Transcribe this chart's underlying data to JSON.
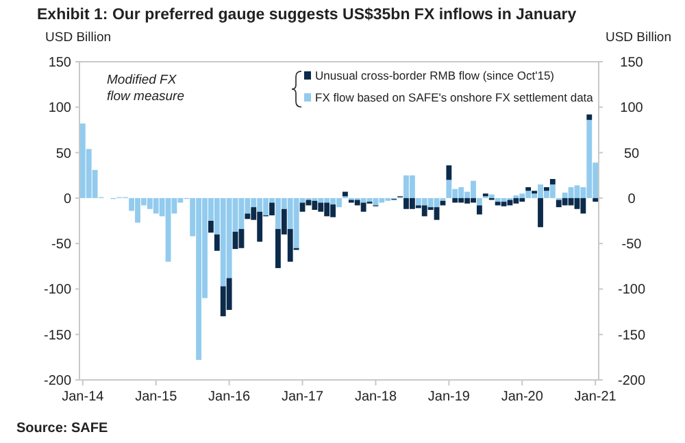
{
  "chart_data": {
    "type": "bar",
    "stacked": true,
    "title": "Exhibit 1: Our preferred gauge suggests US$35bn FX inflows in January",
    "ylabel": "USD Billion",
    "y2label": "USD Billion",
    "categories": [
      "Jan-14",
      null,
      null,
      null,
      null,
      null,
      null,
      null,
      null,
      null,
      null,
      null,
      "Jan-15",
      null,
      null,
      null,
      null,
      null,
      null,
      null,
      null,
      null,
      null,
      null,
      "Jan-16",
      null,
      null,
      null,
      null,
      null,
      null,
      null,
      null,
      null,
      null,
      null,
      "Jan-17",
      null,
      null,
      null,
      null,
      null,
      null,
      null,
      null,
      null,
      null,
      null,
      "Jan-18",
      null,
      null,
      null,
      null,
      null,
      null,
      null,
      null,
      null,
      null,
      null,
      "Jan-19",
      null,
      null,
      null,
      null,
      null,
      null,
      null,
      null,
      null,
      null,
      null,
      "Jan-20",
      null,
      null,
      null,
      null,
      null,
      null,
      null,
      null,
      null,
      null,
      null,
      "Jan-21"
    ],
    "series": [
      {
        "name": "FX flow based on SAFE's onshore FX settlement data",
        "color": "#92cbee",
        "values": [
          82,
          54,
          31,
          1,
          0,
          -1,
          1,
          1,
          -14,
          -27,
          -8,
          -12,
          -17,
          -20,
          -70,
          -17,
          -5,
          -1,
          -42,
          -178,
          -110,
          -25,
          -40,
          -97,
          -88,
          -37,
          -34,
          -17,
          -10,
          -15,
          -19,
          -5,
          -34,
          -12,
          -34,
          -55,
          -5,
          -2,
          -3,
          -5,
          -5,
          -7,
          -10,
          2,
          -2,
          -2,
          -5,
          -4,
          -8,
          -5,
          -3,
          -1,
          1,
          25,
          25,
          -8,
          -8,
          -10,
          -10,
          -3,
          20,
          10,
          12,
          7,
          19,
          -8,
          2,
          4,
          -4,
          -4,
          -2,
          3,
          5,
          8,
          5,
          15,
          8,
          15,
          -2,
          6,
          12,
          14,
          12,
          86,
          39
        ]
      },
      {
        "name": "Unusual cross-border RMB flow (since Oct'15)",
        "color": "#0c2b4b",
        "values": [
          null,
          null,
          null,
          null,
          null,
          null,
          null,
          null,
          null,
          null,
          null,
          null,
          null,
          null,
          null,
          null,
          null,
          null,
          null,
          null,
          null,
          -13,
          -18,
          -33,
          -35,
          -19,
          -21,
          -6,
          -14,
          -33,
          -1,
          -14,
          -43,
          -28,
          -36,
          -2,
          -10,
          -6,
          -10,
          -10,
          -15,
          -14,
          0,
          5,
          -3,
          -6,
          -10,
          -2,
          -1,
          0,
          0,
          -1,
          1,
          -12,
          -12,
          -3,
          -12,
          -3,
          -14,
          -5,
          16,
          -5,
          -5,
          -6,
          -5,
          -10,
          3,
          -2,
          -4,
          -5,
          -6,
          -6,
          -4,
          4,
          3,
          -32,
          4,
          6,
          -8,
          -8,
          -8,
          -12,
          -17,
          6,
          -4
        ]
      }
    ],
    "ylim": [
      -200,
      150
    ],
    "yticks": [
      -200,
      -150,
      -100,
      -50,
      0,
      50,
      100,
      150
    ],
    "y2lim": [
      -200,
      150
    ],
    "y2ticks": [
      -200,
      -150,
      -100,
      -50,
      0,
      50,
      100,
      150
    ],
    "legend": "top right",
    "grid": false,
    "annotations": [
      "Modified FX flow measure",
      "Source: SAFE"
    ]
  }
}
